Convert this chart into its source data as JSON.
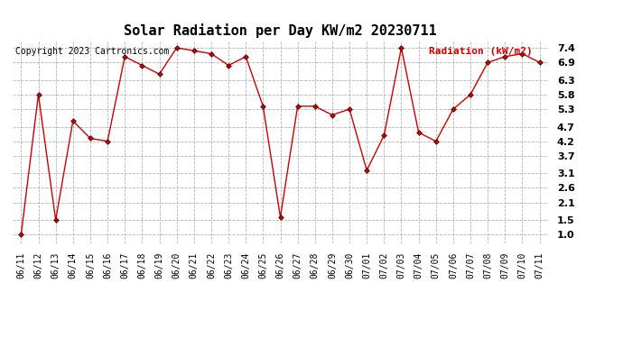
{
  "title": "Solar Radiation per Day KW/m2 20230711",
  "copyright": "Copyright 2023 Cartronics.com",
  "legend_label": "Radiation (kW/m2)",
  "dates": [
    "06/11",
    "06/12",
    "06/13",
    "06/14",
    "06/15",
    "06/16",
    "06/17",
    "06/18",
    "06/19",
    "06/20",
    "06/21",
    "06/22",
    "06/23",
    "06/24",
    "06/25",
    "06/26",
    "06/27",
    "06/28",
    "06/29",
    "06/30",
    "07/01",
    "07/02",
    "07/03",
    "07/04",
    "07/05",
    "07/06",
    "07/07",
    "07/08",
    "07/09",
    "07/10",
    "07/11"
  ],
  "values": [
    1.0,
    5.8,
    1.5,
    4.9,
    4.3,
    4.2,
    7.1,
    6.8,
    6.5,
    7.4,
    7.3,
    7.2,
    6.8,
    7.1,
    5.4,
    1.6,
    5.4,
    5.4,
    5.1,
    5.3,
    3.2,
    4.4,
    7.4,
    4.5,
    4.2,
    5.3,
    5.8,
    6.9,
    7.1,
    7.2,
    6.9
  ],
  "line_color": "#cc0000",
  "marker": "D",
  "marker_size": 3,
  "ylim": [
    0.7,
    7.65
  ],
  "yticks": [
    1.0,
    1.5,
    2.1,
    2.6,
    3.1,
    3.7,
    4.2,
    4.7,
    5.3,
    5.8,
    6.3,
    6.9,
    7.4
  ],
  "grid_color": "#aaaaaa",
  "background_color": "#ffffff",
  "title_fontsize": 11,
  "copyright_fontsize": 7,
  "legend_fontsize": 8,
  "tick_fontsize": 7,
  "ytick_fontsize": 8
}
